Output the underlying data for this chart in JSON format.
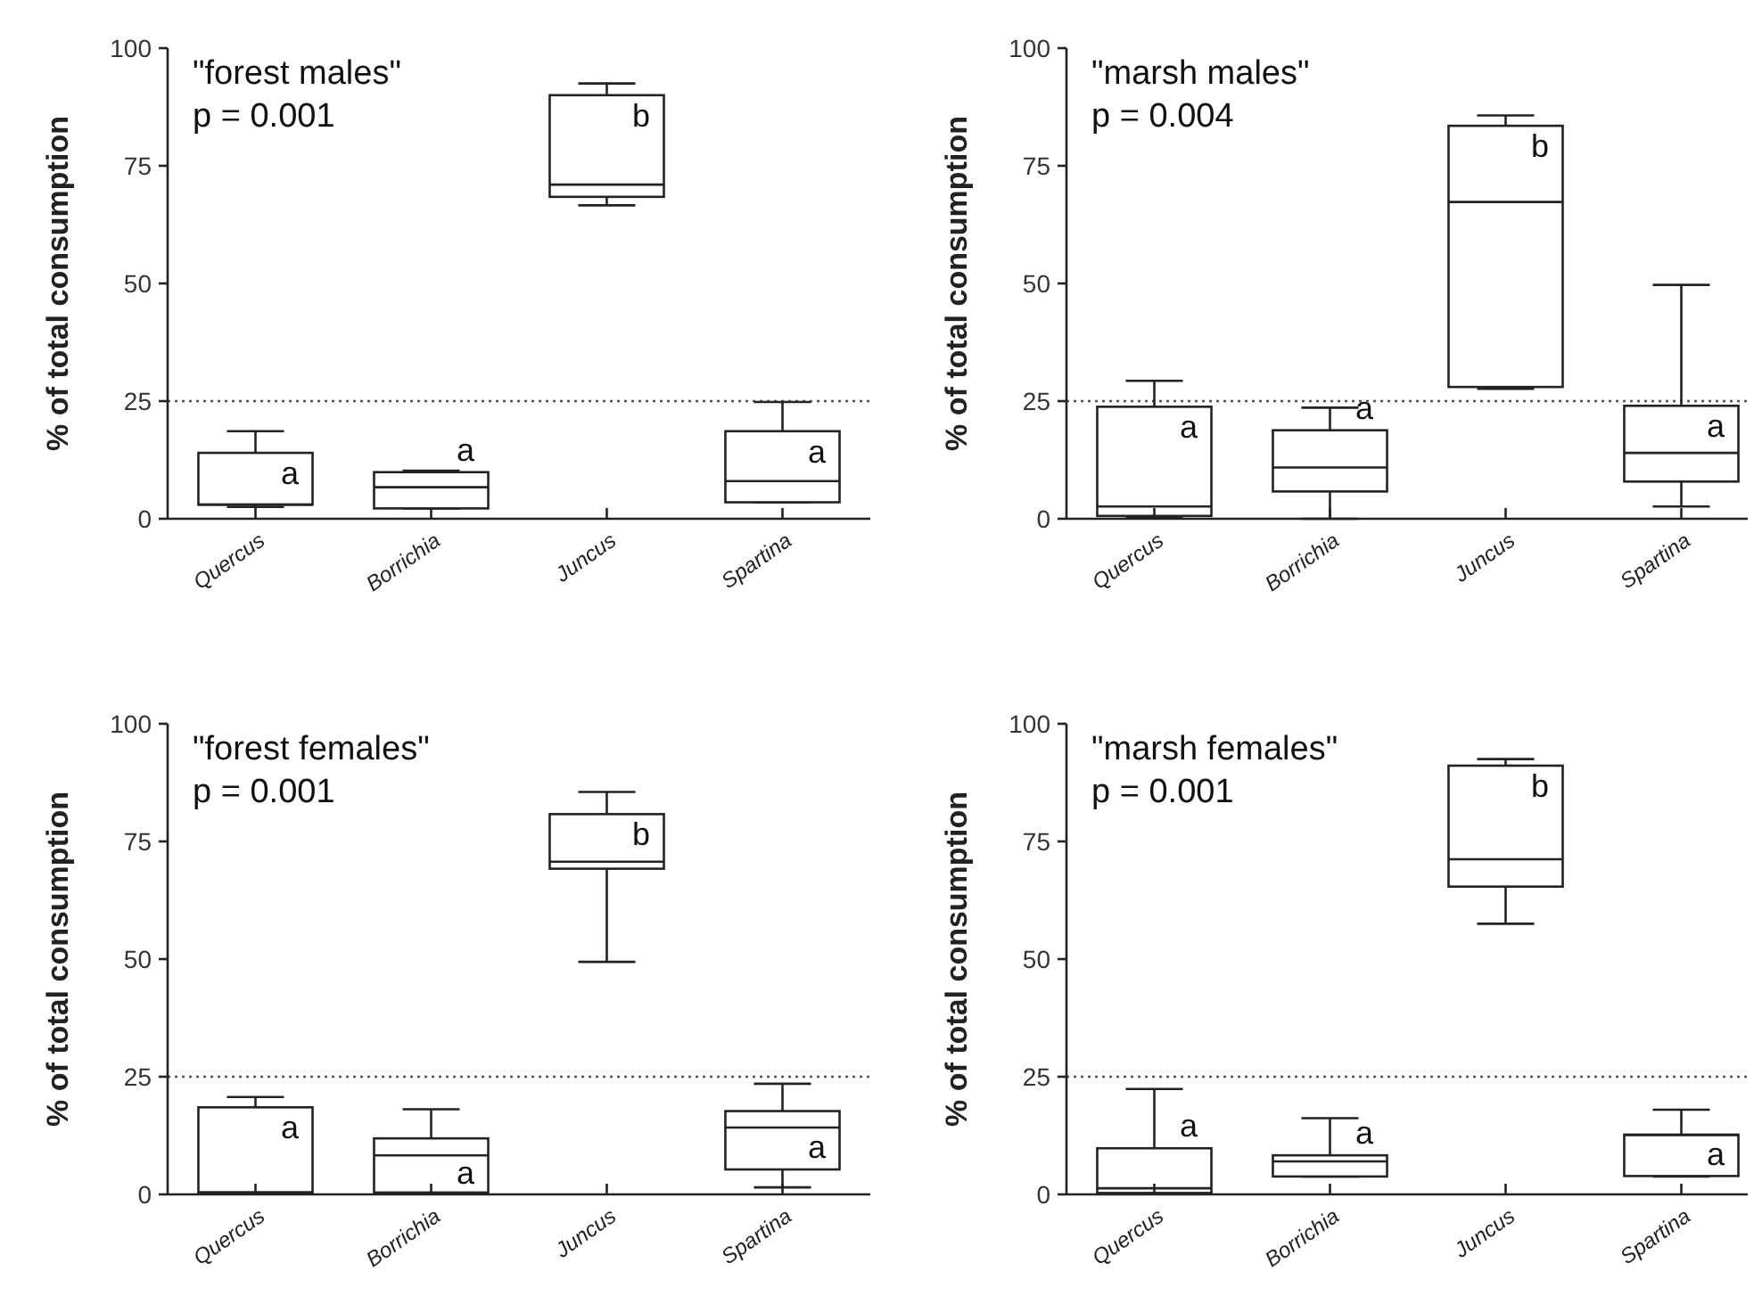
{
  "chart_data": [
    {
      "type": "box",
      "title": "\"forest males\"",
      "subtitle": "p = 0.001",
      "ylabel": "% of total consumption",
      "categories": [
        "Quercus",
        "Borrichia",
        "Juncus",
        "Spartina"
      ],
      "ylim": [
        0,
        100
      ],
      "yticks": [
        0,
        25,
        50,
        75,
        100
      ],
      "grid": false,
      "boxes": [
        {
          "low": 2.5,
          "q1": 3,
          "median": 3,
          "q3": 14,
          "high": 18.6
        },
        {
          "low": 2.2,
          "q1": 2.2,
          "median": 6.7,
          "q3": 9.9,
          "high": 10.2
        },
        {
          "low": 66.6,
          "q1": 68.4,
          "median": 71,
          "q3": 90,
          "high": 92.5
        },
        {
          "low": 3.5,
          "q1": 3.5,
          "median": 8,
          "q3": 18.6,
          "high": 24.8
        }
      ],
      "ref_lines": [
        {
          "axis": "y",
          "value": 25,
          "line_style": "dotted",
          "color": "#555555"
        }
      ],
      "annotations": [
        "a",
        "a",
        "b",
        "a"
      ]
    },
    {
      "type": "box",
      "title": "\"marsh males\"",
      "subtitle": "p = 0.004",
      "ylabel": "% of total consumption",
      "categories": [
        "Quercus",
        "Borrichia",
        "Juncus",
        "Spartina"
      ],
      "ylim": [
        0,
        100
      ],
      "yticks": [
        0,
        25,
        50,
        75,
        100
      ],
      "grid": false,
      "boxes": [
        {
          "low": 0.4,
          "q1": 0.6,
          "median": 2.6,
          "q3": 23.8,
          "high": 29.3
        },
        {
          "low": 0,
          "q1": 5.8,
          "median": 10.9,
          "q3": 18.8,
          "high": 23.6
        },
        {
          "low": 27.6,
          "q1": 28,
          "median": 67.3,
          "q3": 83.5,
          "high": 85.7
        },
        {
          "low": 2.6,
          "q1": 7.9,
          "median": 14,
          "q3": 24,
          "high": 49.7
        }
      ],
      "ref_lines": [
        {
          "axis": "y",
          "value": 25,
          "line_style": "dotted",
          "color": "#555555"
        }
      ],
      "annotations": [
        "a",
        "a",
        "b",
        "a"
      ]
    },
    {
      "type": "box",
      "title": "\"forest females\"",
      "subtitle": "p = 0.001",
      "ylabel": "% of total consumption",
      "categories": [
        "Quercus",
        "Borrichia",
        "Juncus",
        "Spartina"
      ],
      "ylim": [
        0,
        100
      ],
      "yticks": [
        0,
        25,
        50,
        75,
        100
      ],
      "grid": false,
      "boxes": [
        {
          "low": 0.4,
          "q1": 0.4,
          "median": 0.4,
          "q3": 18.5,
          "high": 20.7
        },
        {
          "low": 0.4,
          "q1": 0.4,
          "median": 8.3,
          "q3": 11.9,
          "high": 18.1
        },
        {
          "low": 49.4,
          "q1": 69.2,
          "median": 70.7,
          "q3": 80.8,
          "high": 85.5
        },
        {
          "low": 1.5,
          "q1": 5.3,
          "median": 14.2,
          "q3": 17.7,
          "high": 23.5
        }
      ],
      "ref_lines": [
        {
          "axis": "y",
          "value": 25,
          "line_style": "dotted",
          "color": "#555555"
        }
      ],
      "annotations": [
        "a",
        "a",
        "b",
        "a"
      ]
    },
    {
      "type": "box",
      "title": "\"marsh females\"",
      "subtitle": "p = 0.001",
      "ylabel": "% of total consumption",
      "categories": [
        "Quercus",
        "Borrichia",
        "Juncus",
        "Spartina"
      ],
      "ylim": [
        0,
        100
      ],
      "yticks": [
        0,
        25,
        50,
        75,
        100
      ],
      "grid": false,
      "boxes": [
        {
          "low": 0.3,
          "q1": 0.3,
          "median": 1.3,
          "q3": 9.8,
          "high": 22.4
        },
        {
          "low": 3.8,
          "q1": 3.8,
          "median": 7,
          "q3": 8.3,
          "high": 16.2
        },
        {
          "low": 57.5,
          "q1": 65.4,
          "median": 71.2,
          "q3": 91.1,
          "high": 92.5
        },
        {
          "low": 3.8,
          "q1": 3.9,
          "median": 12.6,
          "q3": 12.7,
          "high": 18
        }
      ],
      "ref_lines": [
        {
          "axis": "y",
          "value": 25,
          "line_style": "dotted",
          "color": "#555555"
        }
      ],
      "annotations": [
        "a",
        "a",
        "b",
        "a"
      ]
    }
  ]
}
